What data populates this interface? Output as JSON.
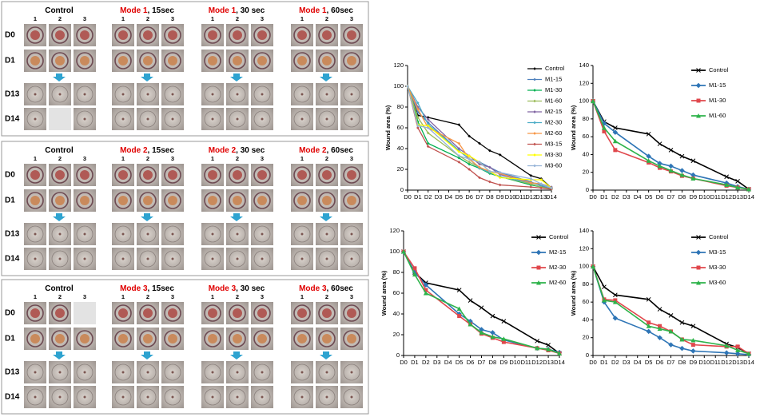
{
  "panels": [
    {
      "row_labels": [
        "D0",
        "D1",
        "D13",
        "D14"
      ],
      "column_numbers": [
        "1",
        "2",
        "3"
      ],
      "groups": [
        {
          "title": "Control"
        },
        {
          "mode": "Mode 1",
          "title": ", 15sec"
        },
        {
          "mode": "Mode 1",
          "title": ", 30 sec"
        },
        {
          "mode": "Mode 1",
          "title": ", 60sec"
        }
      ]
    },
    {
      "row_labels": [
        "D0",
        "D1",
        "D13",
        "D14"
      ],
      "column_numbers": [
        "1",
        "2",
        "3"
      ],
      "groups": [
        {
          "title": "Control"
        },
        {
          "mode": "Mode 2",
          "title": ", 15sec"
        },
        {
          "mode": "Mode 2",
          "title": ", 30 sec"
        },
        {
          "mode": "Mode 2",
          "title": ", 60sec"
        }
      ]
    },
    {
      "row_labels": [
        "D0",
        "D1",
        "D13",
        "D14"
      ],
      "column_numbers": [
        "1",
        "2",
        "3"
      ],
      "groups": [
        {
          "title": "Control"
        },
        {
          "mode": "Mode 3",
          "title": ", 15sec"
        },
        {
          "mode": "Mode 3",
          "title": ", 30 sec"
        },
        {
          "mode": "Mode 3",
          "title": ", 60sec"
        }
      ]
    }
  ],
  "chart_data": [
    {
      "type": "line",
      "y_label": "Wound area (%)",
      "legend": "right",
      "x": [
        0,
        1,
        2,
        5,
        6,
        7,
        8,
        9,
        12,
        13,
        14
      ],
      "xlim": [
        0,
        14
      ],
      "xticks": [
        {
          "value": 0,
          "label": "D0"
        },
        {
          "value": 1,
          "label": "D1"
        },
        {
          "value": 2,
          "label": "D2"
        },
        {
          "value": 3,
          "label": "D3"
        },
        {
          "value": 4,
          "label": "D4"
        },
        {
          "value": 5,
          "label": "D5"
        },
        {
          "value": 6,
          "label": "D6"
        },
        {
          "value": 7,
          "label": "D7"
        },
        {
          "value": 8,
          "label": "D8"
        },
        {
          "value": 9,
          "label": "D9"
        },
        {
          "value": 10,
          "label": "D10"
        },
        {
          "value": 11,
          "label": "D11"
        },
        {
          "value": 12,
          "label": "D12"
        },
        {
          "value": 13,
          "label": "D13"
        },
        {
          "value": 14,
          "label": "D14"
        }
      ],
      "ylim": [
        0,
        120
      ],
      "yticks": [
        0,
        20,
        40,
        60,
        80,
        100,
        120
      ],
      "series": [
        {
          "name": "Control",
          "color": "#000000",
          "marker": "diamond",
          "values": [
            100,
            72,
            70,
            63,
            52,
            45,
            38,
            34,
            14,
            11,
            2
          ]
        },
        {
          "name": "M1-15",
          "color": "#4f81bd",
          "marker": "diamond",
          "values": [
            100,
            75,
            65,
            38,
            30,
            27,
            22,
            17,
            8,
            4,
            1
          ]
        },
        {
          "name": "M1-30",
          "color": "#00b050",
          "marker": "diamond",
          "values": [
            100,
            66,
            45,
            31,
            25,
            21,
            16,
            13,
            5,
            3,
            1
          ]
        },
        {
          "name": "M1-60",
          "color": "#9bbb59",
          "marker": "diamond",
          "values": [
            100,
            70,
            55,
            33,
            27,
            22,
            17,
            13,
            6,
            3,
            1
          ]
        },
        {
          "name": "M2-15",
          "color": "#8064a2",
          "marker": "diamond",
          "values": [
            100,
            80,
            68,
            40,
            33,
            25,
            22,
            15,
            7,
            6,
            3
          ]
        },
        {
          "name": "M2-30",
          "color": "#4bacc6",
          "marker": "diamond",
          "values": [
            100,
            84,
            63,
            38,
            30,
            21,
            17,
            13,
            7,
            5,
            2
          ]
        },
        {
          "name": "M2-60",
          "color": "#f79646",
          "marker": "diamond",
          "values": [
            100,
            78,
            60,
            45,
            30,
            22,
            18,
            16,
            7,
            6,
            2
          ]
        },
        {
          "name": "M3-15",
          "color": "#c0504d",
          "marker": "diamond",
          "values": [
            100,
            60,
            42,
            27,
            20,
            12,
            8,
            5,
            3,
            2,
            1
          ]
        },
        {
          "name": "M3-30",
          "color": "#ffff00",
          "marker": "diamond",
          "values": [
            100,
            63,
            62,
            37,
            33,
            27,
            18,
            12,
            10,
            10,
            2
          ]
        },
        {
          "name": "M3-60",
          "color": "#95b3d7",
          "marker": "diamond",
          "values": [
            100,
            62,
            60,
            33,
            30,
            27,
            18,
            17,
            11,
            6,
            2
          ]
        }
      ]
    },
    {
      "type": "line",
      "y_label": "Wound area (%)",
      "legend": "right",
      "x": [
        0,
        1,
        2,
        5,
        6,
        7,
        8,
        9,
        12,
        13,
        14
      ],
      "xlim": [
        0,
        14
      ],
      "xticks": [
        {
          "value": 0,
          "label": "D0"
        },
        {
          "value": 1,
          "label": "D1"
        },
        {
          "value": 2,
          "label": "D2"
        },
        {
          "value": 3,
          "label": "D3"
        },
        {
          "value": 4,
          "label": "D4"
        },
        {
          "value": 5,
          "label": "D5"
        },
        {
          "value": 6,
          "label": "D6"
        },
        {
          "value": 7,
          "label": "D7"
        },
        {
          "value": 8,
          "label": "D8"
        },
        {
          "value": 9,
          "label": "D9"
        },
        {
          "value": 10,
          "label": "D10"
        },
        {
          "value": 11,
          "label": "D11"
        },
        {
          "value": 12,
          "label": "D12"
        },
        {
          "value": 13,
          "label": "D13"
        },
        {
          "value": 14,
          "label": "D14"
        }
      ],
      "ylim": [
        0,
        140
      ],
      "yticks": [
        0,
        20,
        40,
        60,
        80,
        100,
        120,
        140
      ],
      "series": [
        {
          "name": "Control",
          "color": "#000000",
          "marker": "x",
          "values": [
            100,
            77,
            70,
            63,
            52,
            45,
            38,
            33,
            15,
            10,
            1
          ]
        },
        {
          "name": "M1-15",
          "color": "#2e75b6",
          "marker": "diamond",
          "values": [
            100,
            75,
            65,
            38,
            30,
            27,
            22,
            17,
            8,
            4,
            1
          ]
        },
        {
          "name": "M1-30",
          "color": "#e0474c",
          "marker": "square",
          "values": [
            100,
            66,
            45,
            31,
            25,
            21,
            16,
            13,
            5,
            3,
            1
          ]
        },
        {
          "name": "M1-60",
          "color": "#2db34a",
          "marker": "triangle",
          "values": [
            100,
            70,
            55,
            33,
            27,
            22,
            17,
            13,
            6,
            3,
            1
          ]
        }
      ]
    },
    {
      "type": "line",
      "y_label": "Wound area (%)",
      "legend": "right",
      "x": [
        0,
        1,
        2,
        5,
        6,
        7,
        8,
        9,
        12,
        13,
        14
      ],
      "xlim": [
        0,
        14
      ],
      "xticks": [
        {
          "value": 0,
          "label": "D0"
        },
        {
          "value": 1,
          "label": "D1"
        },
        {
          "value": 2,
          "label": "D2"
        },
        {
          "value": 3,
          "label": "D3"
        },
        {
          "value": 4,
          "label": "D4"
        },
        {
          "value": 5,
          "label": "D5"
        },
        {
          "value": 6,
          "label": "D6"
        },
        {
          "value": 7,
          "label": "D7"
        },
        {
          "value": 8,
          "label": "D8"
        },
        {
          "value": 9,
          "label": "D9"
        },
        {
          "value": 10,
          "label": "D10"
        },
        {
          "value": 11,
          "label": "D11"
        },
        {
          "value": 12,
          "label": "D12"
        },
        {
          "value": 13,
          "label": "D13"
        },
        {
          "value": 14,
          "label": "D14"
        }
      ],
      "ylim": [
        0,
        120
      ],
      "yticks": [
        0,
        20,
        40,
        60,
        80,
        100,
        120
      ],
      "series": [
        {
          "name": "Control",
          "color": "#000000",
          "marker": "x",
          "values": [
            100,
            80,
            70,
            63,
            53,
            46,
            38,
            33,
            14,
            10,
            2
          ]
        },
        {
          "name": "M2-15",
          "color": "#2e75b6",
          "marker": "diamond",
          "values": [
            100,
            80,
            68,
            40,
            33,
            25,
            22,
            15,
            7,
            6,
            3
          ]
        },
        {
          "name": "M2-30",
          "color": "#e0474c",
          "marker": "square",
          "values": [
            100,
            84,
            63,
            38,
            30,
            21,
            17,
            13,
            7,
            5,
            2
          ]
        },
        {
          "name": "M2-60",
          "color": "#2db34a",
          "marker": "triangle",
          "values": [
            100,
            78,
            60,
            45,
            30,
            22,
            18,
            16,
            7,
            6,
            2
          ]
        }
      ]
    },
    {
      "type": "line",
      "y_label": "Wound area (%)",
      "legend": "right",
      "x": [
        0,
        1,
        2,
        5,
        6,
        7,
        8,
        9,
        12,
        13,
        14
      ],
      "xlim": [
        0,
        14
      ],
      "xticks": [
        {
          "value": 0,
          "label": "D0"
        },
        {
          "value": 1,
          "label": "D1"
        },
        {
          "value": 2,
          "label": "D2"
        },
        {
          "value": 3,
          "label": "D3"
        },
        {
          "value": 4,
          "label": "D4"
        },
        {
          "value": 5,
          "label": "D5"
        },
        {
          "value": 6,
          "label": "D6"
        },
        {
          "value": 7,
          "label": "D7"
        },
        {
          "value": 8,
          "label": "D8"
        },
        {
          "value": 9,
          "label": "D9"
        },
        {
          "value": 10,
          "label": "D10"
        },
        {
          "value": 11,
          "label": "D11"
        },
        {
          "value": 12,
          "label": "D12"
        },
        {
          "value": 13,
          "label": "D13"
        },
        {
          "value": 14,
          "label": "D14"
        }
      ],
      "ylim": [
        0,
        140
      ],
      "yticks": [
        0,
        20,
        40,
        60,
        80,
        100,
        120,
        140
      ],
      "series": [
        {
          "name": "Control",
          "color": "#000000",
          "marker": "x",
          "values": [
            100,
            77,
            68,
            63,
            52,
            45,
            37,
            33,
            13,
            9,
            2
          ]
        },
        {
          "name": "M3-15",
          "color": "#2e75b6",
          "marker": "diamond",
          "values": [
            100,
            60,
            42,
            27,
            20,
            12,
            8,
            5,
            3,
            2,
            1
          ]
        },
        {
          "name": "M3-30",
          "color": "#e0474c",
          "marker": "square",
          "values": [
            100,
            63,
            62,
            37,
            33,
            27,
            18,
            12,
            10,
            10,
            2
          ]
        },
        {
          "name": "M3-60",
          "color": "#2db34a",
          "marker": "triangle",
          "values": [
            100,
            62,
            60,
            33,
            30,
            27,
            18,
            17,
            11,
            6,
            2
          ]
        }
      ]
    }
  ]
}
